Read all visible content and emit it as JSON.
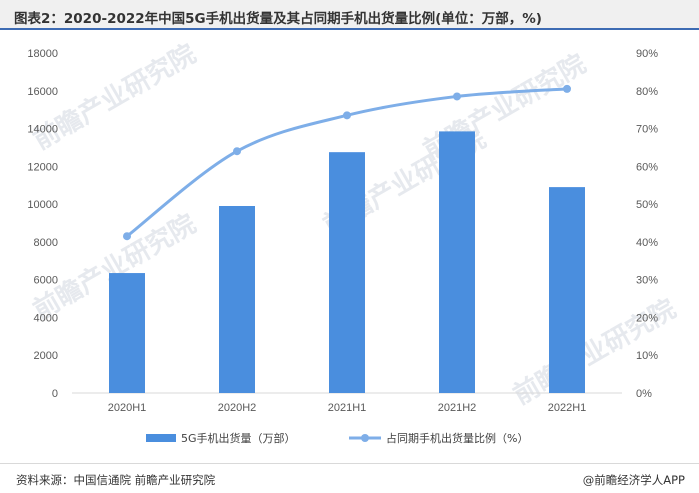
{
  "title": "图表2：2020-2022年中国5G手机出货量及其占同期手机出货量比例(单位：万部，%)",
  "watermark": "前瞻产业研究院",
  "footer": {
    "source": "资料来源：中国信通院 前瞻产业研究院",
    "brand": "@前瞻经济学人APP"
  },
  "chart_data": {
    "type": "bar",
    "categories": [
      "2020H1",
      "2020H2",
      "2021H1",
      "2021H2",
      "2022H1"
    ],
    "series": [
      {
        "name": "5G手机出货量（万部）",
        "type": "bar",
        "axis": "left",
        "color": "#4a8ede",
        "values": [
          6350,
          9900,
          12750,
          13850,
          10900
        ]
      },
      {
        "name": "占同期手机出货量比例（%）",
        "type": "line",
        "axis": "right",
        "color": "#7eaee8",
        "values": [
          41.5,
          64.0,
          73.5,
          78.5,
          80.5
        ]
      }
    ],
    "y_left": {
      "min": 0,
      "max": 18000,
      "step": 2000,
      "ticks": [
        "0",
        "2000",
        "4000",
        "6000",
        "8000",
        "10000",
        "12000",
        "14000",
        "16000",
        "18000"
      ]
    },
    "y_right": {
      "min": 0,
      "max": 90,
      "step": 10,
      "ticks": [
        "0%",
        "10%",
        "20%",
        "30%",
        "40%",
        "50%",
        "60%",
        "70%",
        "80%",
        "90%"
      ]
    },
    "grid": false,
    "legend_position": "bottom"
  }
}
